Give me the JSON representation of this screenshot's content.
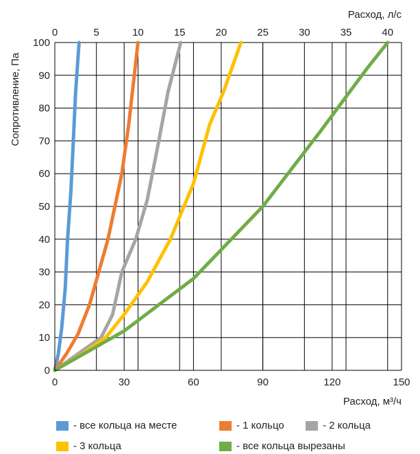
{
  "chart_data": {
    "type": "line",
    "title": "",
    "xlabel": "Расход, м³/ч",
    "x2label": "Расход, л/с",
    "ylabel": "Сопротивление, Па",
    "xlim": [
      0,
      150
    ],
    "x2lim": [
      0,
      41.667
    ],
    "ylim": [
      0,
      100
    ],
    "x_ticks": [
      "0",
      "30",
      "60",
      "90",
      "120",
      "150"
    ],
    "x2_ticks": [
      "0",
      "5",
      "10",
      "15",
      "20",
      "25",
      "30",
      "35",
      "40"
    ],
    "y_ticks": [
      "0",
      "10",
      "20",
      "30",
      "40",
      "50",
      "60",
      "70",
      "80",
      "90",
      "100"
    ],
    "grid": true,
    "legend_position": "bottom",
    "series": [
      {
        "name": "- все кольца на месте",
        "color": "#5b9bd5",
        "x": [
          0,
          1.5,
          3,
          4.5,
          5.5,
          7,
          8,
          9,
          10.5
        ],
        "y": [
          0,
          5,
          13,
          25,
          40,
          55,
          70,
          85,
          100
        ]
      },
      {
        "name": "- 1 кольцо",
        "color": "#ed7d31",
        "x": [
          0,
          5,
          10,
          15,
          19,
          23,
          26,
          29,
          32,
          36
        ],
        "y": [
          0,
          5,
          11,
          20,
          30,
          40,
          50,
          60,
          75,
          100
        ]
      },
      {
        "name": "- 2 кольца",
        "color": "#a5a5a5",
        "x": [
          0,
          10,
          20,
          25,
          29,
          35,
          40,
          45,
          49,
          54.5
        ],
        "y": [
          0,
          5,
          10,
          17,
          30,
          40,
          52,
          70,
          85,
          100
        ]
      },
      {
        "name": "- 3 кольца",
        "color": "#ffc000",
        "x": [
          0,
          12,
          22,
          30,
          40,
          50,
          60,
          67,
          73,
          80.5
        ],
        "y": [
          0,
          5,
          10,
          17,
          27,
          40,
          57,
          75,
          85,
          100
        ]
      },
      {
        "name": "- все кольца вырезаны",
        "color": "#70ad47",
        "x": [
          0,
          30,
          60,
          90,
          115,
          135,
          144
        ],
        "y": [
          0,
          12,
          28,
          50,
          73,
          92,
          100
        ]
      }
    ]
  }
}
